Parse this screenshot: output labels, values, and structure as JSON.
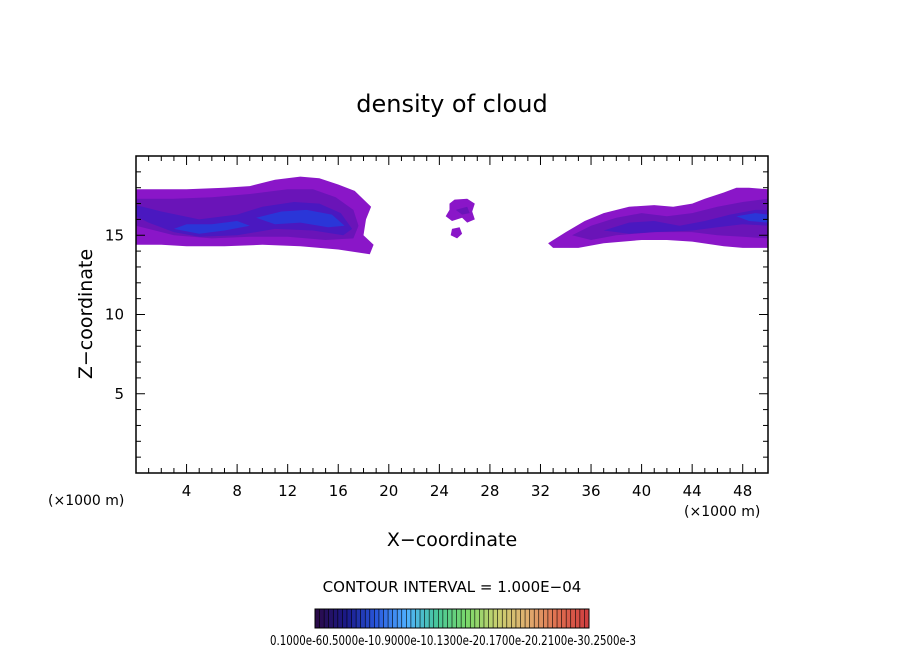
{
  "chart_data": {
    "type": "heatmap",
    "title": "density of cloud",
    "xlabel": "X−coordinate",
    "ylabel": "Z−coordinate",
    "x_unit_left": "(×1000 m)",
    "x_unit_right": "(×1000 m)",
    "xlim": [
      0,
      50
    ],
    "ylim": [
      0,
      20
    ],
    "x_ticks": [
      4,
      8,
      12,
      16,
      20,
      24,
      28,
      32,
      36,
      40,
      44,
      48
    ],
    "y_ticks": [
      5,
      10,
      15
    ],
    "contour_interval_text": "CONTOUR INTERVAL = 1.000E−04",
    "colorbar_text": "0.1000e-60.5000e-10.9000e-10.1300e-20.1700e-20.2100e-30.2500e-3",
    "colorbar_colors": [
      "#2a0b4a",
      "#1a1a8a",
      "#2a5adf",
      "#4fb0ff",
      "#48c89a",
      "#7ad86a",
      "#c8d070",
      "#e0b070",
      "#e07050",
      "#d04040"
    ],
    "cloud_colors": {
      "outer": "#8a16c8",
      "mid": "#6a14b8",
      "inner": "#4a18c0",
      "core": "#2a36d8"
    },
    "regions": [
      {
        "name": "left-cloud",
        "x_range": [
          0,
          18.8
        ],
        "z_range": [
          14,
          18.7
        ],
        "peak": [
          13.5,
          16.2
        ]
      },
      {
        "name": "center-patch",
        "x_range": [
          24.5,
          26.8
        ],
        "z_range": [
          14.8,
          17.2
        ]
      },
      {
        "name": "right-cloud",
        "x_range": [
          32.6,
          50
        ],
        "z_range": [
          14,
          18
        ]
      }
    ]
  }
}
